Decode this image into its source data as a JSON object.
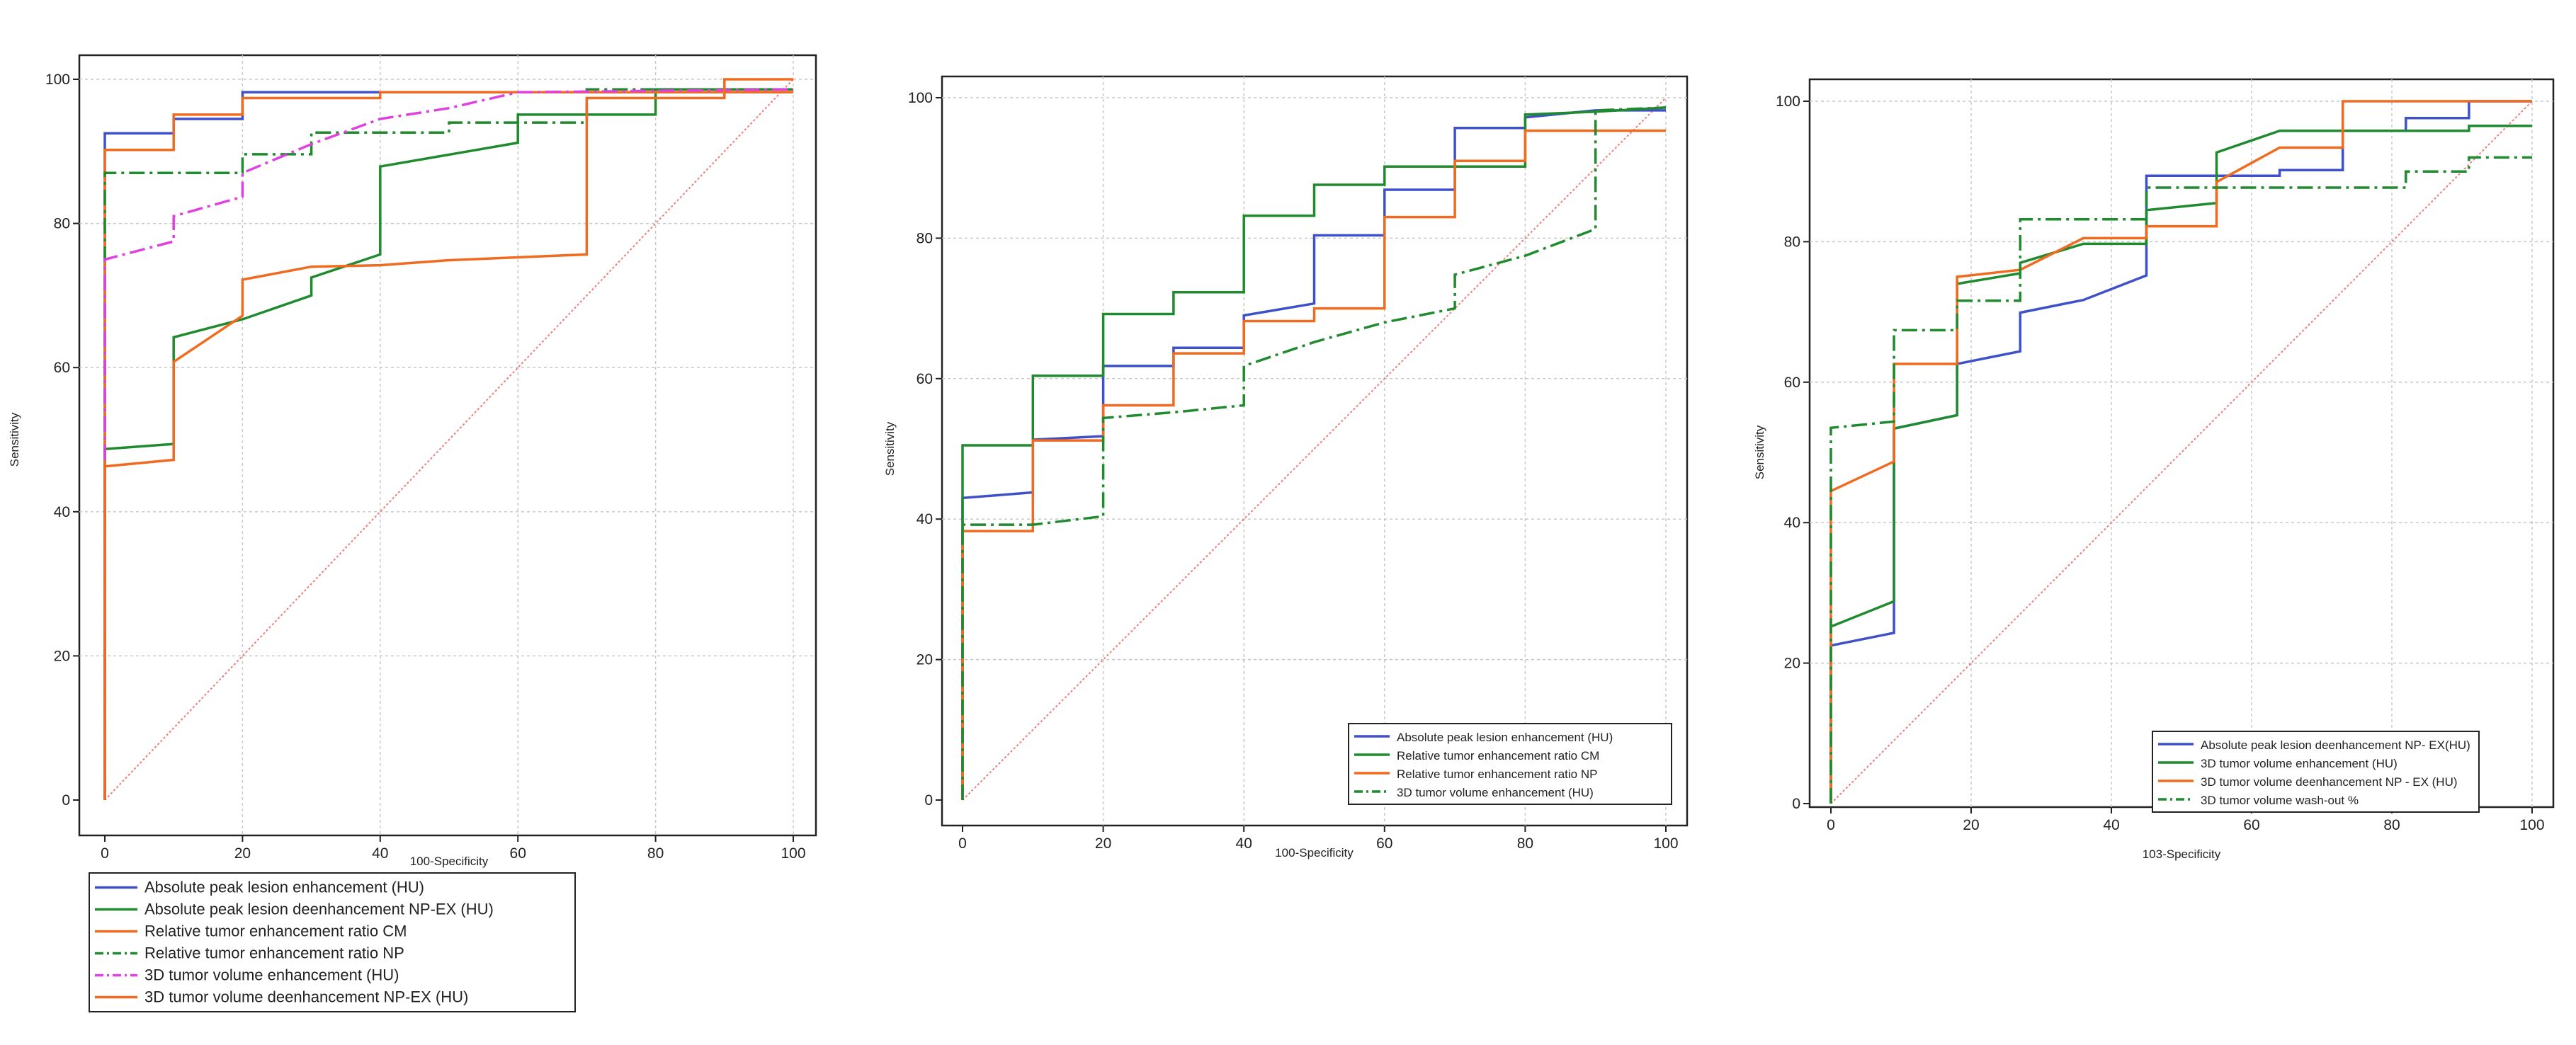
{
  "chart_data": [
    {
      "type": "line",
      "xlabel": "100-Specificity",
      "ylabel": "Sensitivity",
      "xlim": [
        0,
        100
      ],
      "ylim": [
        0,
        100
      ],
      "xticks": [
        0,
        20,
        40,
        60,
        80,
        100
      ],
      "yticks": [
        0,
        20,
        40,
        60,
        80,
        100
      ],
      "grid": true,
      "legend_position": "bottom-left, outside plot",
      "series": [
        {
          "name": "Absolute peak lesion enhancement (HU)",
          "color": "#3f51c9",
          "dash": "solid",
          "points": [
            [
              0,
              0
            ],
            [
              0,
              92.5
            ],
            [
              10,
              92.5
            ],
            [
              10,
              94.5
            ],
            [
              20,
              94.5
            ],
            [
              20,
              98.2
            ],
            [
              100,
              98.2
            ]
          ]
        },
        {
          "name": "Absolute peak lesion deenhancement NP-EX (HU)",
          "color": "#1f8a2e",
          "dash": "solid",
          "points": [
            [
              0,
              0
            ],
            [
              0,
              48.7
            ],
            [
              10,
              49.4
            ],
            [
              10,
              64.2
            ],
            [
              20,
              66.7
            ],
            [
              30,
              70
            ],
            [
              30,
              72.5
            ],
            [
              40,
              75.7
            ],
            [
              40,
              87.9
            ],
            [
              60,
              91.2
            ],
            [
              60,
              95.1
            ],
            [
              80,
              95.1
            ],
            [
              80,
              98.6
            ],
            [
              100,
              98.6
            ]
          ]
        },
        {
          "name": "Relative tumor enhancement ratio CM",
          "color": "#f06a20",
          "dash": "solid",
          "points": [
            [
              0,
              0
            ],
            [
              0,
              90.2
            ],
            [
              10,
              90.2
            ],
            [
              10,
              95.1
            ],
            [
              20,
              95.1
            ],
            [
              20,
              97.4
            ],
            [
              40,
              97.4
            ],
            [
              40,
              98.2
            ],
            [
              100,
              98.2
            ]
          ]
        },
        {
          "name": "Relative tumor enhancement ratio NP",
          "color": "#1f8a2e",
          "dash": "dash-dot",
          "points": [
            [
              0,
              0
            ],
            [
              0,
              87
            ],
            [
              10,
              87
            ],
            [
              10,
              87
            ],
            [
              20,
              87
            ],
            [
              20,
              89.6
            ],
            [
              30,
              89.6
            ],
            [
              30,
              92.6
            ],
            [
              40,
              92.6
            ],
            [
              50,
              92.6
            ],
            [
              50,
              94
            ],
            [
              60,
              94
            ],
            [
              70,
              94
            ],
            [
              70,
              98.6
            ],
            [
              100,
              98.6
            ]
          ]
        },
        {
          "name": "3D tumor volume enhancement (HU)",
          "color": "#e040e0",
          "dash": "dash-dot",
          "points": [
            [
              0,
              0
            ],
            [
              0,
              75
            ],
            [
              10,
              77.5
            ],
            [
              10,
              81
            ],
            [
              20,
              83.7
            ],
            [
              20,
              87
            ],
            [
              30,
              91
            ],
            [
              40,
              94.5
            ],
            [
              50,
              96
            ],
            [
              60,
              98.2
            ],
            [
              100,
              98.6
            ]
          ]
        },
        {
          "name": "3D tumor volume deenhancement NP-EX (HU)",
          "color": "#f06a20",
          "dash": "solid",
          "points": [
            [
              0,
              0
            ],
            [
              0,
              46.3
            ],
            [
              10,
              47.2
            ],
            [
              10,
              60.8
            ],
            [
              20,
              67.2
            ],
            [
              20,
              72.2
            ],
            [
              30,
              74
            ],
            [
              40,
              74.2
            ],
            [
              50,
              74.9
            ],
            [
              70,
              75.7
            ],
            [
              70,
              97.4
            ],
            [
              90,
              97.4
            ],
            [
              90,
              100
            ],
            [
              100,
              100
            ]
          ]
        }
      ]
    },
    {
      "type": "line",
      "xlabel": "100-Specificity",
      "ylabel": "Sensitivity",
      "xlim": [
        0,
        100
      ],
      "ylim": [
        0,
        100
      ],
      "xticks": [
        0,
        20,
        40,
        60,
        80,
        100
      ],
      "yticks": [
        0,
        20,
        40,
        60,
        80,
        100
      ],
      "grid": true,
      "legend_position": "bottom-right, inside plot",
      "series": [
        {
          "name": "Absolute peak lesion enhancement (HU)",
          "color": "#3f51c9",
          "dash": "solid",
          "points": [
            [
              0,
              0
            ],
            [
              0,
              43
            ],
            [
              10,
              43.8
            ],
            [
              10,
              51.3
            ],
            [
              20,
              51.8
            ],
            [
              20,
              61.8
            ],
            [
              30,
              61.8
            ],
            [
              30,
              64.4
            ],
            [
              40,
              64.4
            ],
            [
              40,
              69
            ],
            [
              50,
              70.7
            ],
            [
              50,
              80.4
            ],
            [
              60,
              80.4
            ],
            [
              60,
              86.9
            ],
            [
              70,
              86.9
            ],
            [
              70,
              95.7
            ],
            [
              80,
              95.7
            ],
            [
              80,
              97.2
            ],
            [
              90,
              98.2
            ],
            [
              100,
              98.2
            ]
          ]
        },
        {
          "name": "Relative tumor enhancement ratio CM",
          "color": "#1f8a2e",
          "dash": "solid",
          "points": [
            [
              0,
              0
            ],
            [
              0,
              50.5
            ],
            [
              10,
              50.5
            ],
            [
              10,
              60.4
            ],
            [
              20,
              60.4
            ],
            [
              20,
              69.2
            ],
            [
              30,
              69.2
            ],
            [
              30,
              72.3
            ],
            [
              40,
              72.3
            ],
            [
              40,
              83.2
            ],
            [
              50,
              83.2
            ],
            [
              50,
              87.6
            ],
            [
              60,
              87.6
            ],
            [
              60,
              90.2
            ],
            [
              80,
              90.2
            ],
            [
              80,
              97.6
            ],
            [
              90,
              98
            ],
            [
              100,
              98.6
            ]
          ]
        },
        {
          "name": "Relative tumor enhancement ratio NP",
          "color": "#f06a20",
          "dash": "solid",
          "points": [
            [
              0,
              0
            ],
            [
              0,
              38.3
            ],
            [
              10,
              38.3
            ],
            [
              10,
              51.2
            ],
            [
              20,
              51.2
            ],
            [
              20,
              56.2
            ],
            [
              30,
              56.2
            ],
            [
              30,
              63.6
            ],
            [
              40,
              63.6
            ],
            [
              40,
              68.2
            ],
            [
              50,
              68.2
            ],
            [
              50,
              70
            ],
            [
              60,
              70
            ],
            [
              60,
              83
            ],
            [
              70,
              83
            ],
            [
              70,
              91
            ],
            [
              80,
              91
            ],
            [
              80,
              95.3
            ],
            [
              100,
              95.3
            ]
          ]
        },
        {
          "name": "3D tumor volume enhancement (HU)",
          "color": "#1f8a2e",
          "dash": "dash-dot",
          "points": [
            [
              0,
              0
            ],
            [
              0,
              39.2
            ],
            [
              10,
              39.2
            ],
            [
              20,
              40.4
            ],
            [
              20,
              54.4
            ],
            [
              30,
              55.2
            ],
            [
              40,
              56.2
            ],
            [
              40,
              61.8
            ],
            [
              50,
              65.2
            ],
            [
              60,
              68
            ],
            [
              70,
              70
            ],
            [
              70,
              74.8
            ],
            [
              80,
              77.5
            ],
            [
              90,
              81.3
            ],
            [
              90,
              98.2
            ],
            [
              100,
              98.6
            ]
          ]
        }
      ]
    },
    {
      "type": "line",
      "xlabel": "103-Specificity",
      "ylabel": "Sensitivity",
      "xlim": [
        0,
        100
      ],
      "ylim": [
        0,
        100
      ],
      "xticks": [
        0,
        20,
        40,
        60,
        80,
        100
      ],
      "yticks": [
        0,
        20,
        40,
        60,
        80,
        100
      ],
      "grid": true,
      "legend_position": "bottom-right, inside plot",
      "series": [
        {
          "name": "Absolute peak lesion deenhancement NP- EX(HU)",
          "color": "#3f51c9",
          "dash": "solid",
          "points": [
            [
              0,
              0
            ],
            [
              0,
              22.5
            ],
            [
              9,
              24.3
            ],
            [
              9,
              53.4
            ],
            [
              18,
              55.3
            ],
            [
              18,
              62.6
            ],
            [
              27,
              64.4
            ],
            [
              27,
              69.9
            ],
            [
              36,
              71.7
            ],
            [
              45,
              75.2
            ],
            [
              45,
              89.4
            ],
            [
              55,
              89.4
            ],
            [
              64,
              89.4
            ],
            [
              64,
              90.2
            ],
            [
              73,
              90.2
            ],
            [
              73,
              95.8
            ],
            [
              82,
              95.8
            ],
            [
              82,
              97.6
            ],
            [
              91,
              97.6
            ],
            [
              91,
              100
            ],
            [
              100,
              100
            ]
          ]
        },
        {
          "name": "3D tumor volume enhancement (HU)",
          "color": "#1f8a2e",
          "dash": "solid",
          "points": [
            [
              0,
              0
            ],
            [
              0,
              25.2
            ],
            [
              9,
              28.8
            ],
            [
              9,
              53.4
            ],
            [
              18,
              55.3
            ],
            [
              18,
              74
            ],
            [
              27,
              75.5
            ],
            [
              27,
              77
            ],
            [
              36,
              79.7
            ],
            [
              45,
              79.7
            ],
            [
              45,
              84.5
            ],
            [
              55,
              85.5
            ],
            [
              55,
              92.7
            ],
            [
              64,
              95.8
            ],
            [
              73,
              95.8
            ],
            [
              82,
              95.8
            ],
            [
              91,
              95.8
            ],
            [
              91,
              96.5
            ],
            [
              100,
              96.5
            ]
          ]
        },
        {
          "name": "3D tumor volume deenhancement NP - EX (HU)",
          "color": "#f06a20",
          "dash": "solid",
          "points": [
            [
              0,
              0
            ],
            [
              0,
              44.5
            ],
            [
              9,
              48.7
            ],
            [
              9,
              62.6
            ],
            [
              18,
              62.6
            ],
            [
              18,
              75
            ],
            [
              27,
              76
            ],
            [
              36,
              80.5
            ],
            [
              45,
              80.5
            ],
            [
              45,
              82.2
            ],
            [
              55,
              82.2
            ],
            [
              55,
              88.5
            ],
            [
              64,
              93.4
            ],
            [
              73,
              93.4
            ],
            [
              73,
              100
            ],
            [
              100,
              100
            ]
          ]
        },
        {
          "name": "3D tumor volume wash-out %",
          "color": "#1f8a2e",
          "dash": "dash-dot",
          "points": [
            [
              0,
              0
            ],
            [
              0,
              53.5
            ],
            [
              9,
              54.4
            ],
            [
              9,
              67.4
            ],
            [
              18,
              67.4
            ],
            [
              18,
              71.6
            ],
            [
              27,
              71.6
            ],
            [
              27,
              83.2
            ],
            [
              36,
              83.2
            ],
            [
              45,
              83.2
            ],
            [
              45,
              87.7
            ],
            [
              55,
              87.7
            ],
            [
              82,
              87.7
            ],
            [
              82,
              90
            ],
            [
              91,
              90
            ],
            [
              91,
              92
            ],
            [
              100,
              92
            ]
          ]
        }
      ]
    }
  ]
}
